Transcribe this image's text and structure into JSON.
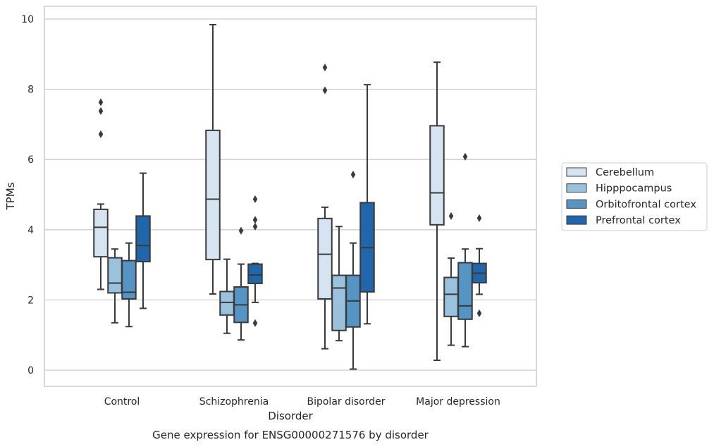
{
  "chart_data": {
    "type": "box",
    "title": "",
    "caption": "Gene expression for ENSG00000271576 by disorder",
    "xlabel": "Disorder",
    "ylabel": "TPMs",
    "ylim": [
      -0.4,
      10.35
    ],
    "yticks": [
      0,
      2,
      4,
      6,
      8,
      10
    ],
    "grid": "horizontal",
    "legend_position": "right",
    "categories": [
      "Control",
      "Schizophrenia",
      "Bipolar disorder",
      "Major depression"
    ],
    "series": [
      {
        "name": "Cerebellum",
        "color": "#d6e4f2",
        "boxes": [
          {
            "whisker_low": 2.3,
            "q1": 3.23,
            "median": 4.07,
            "q3": 4.58,
            "whisker_high": 4.73,
            "outliers": [
              6.72,
              7.38,
              7.63
            ]
          },
          {
            "whisker_low": 2.17,
            "q1": 3.15,
            "median": 4.87,
            "q3": 6.83,
            "whisker_high": 9.84,
            "outliers": []
          },
          {
            "whisker_low": 0.61,
            "q1": 2.03,
            "median": 3.3,
            "q3": 4.32,
            "whisker_high": 4.64,
            "outliers": [
              7.97,
              8.62
            ]
          },
          {
            "whisker_low": 0.28,
            "q1": 4.14,
            "median": 5.05,
            "q3": 6.96,
            "whisker_high": 8.77,
            "outliers": []
          }
        ]
      },
      {
        "name": "Hipppocampus",
        "color": "#9bc2dc",
        "boxes": [
          {
            "whisker_low": 1.35,
            "q1": 2.2,
            "median": 2.48,
            "q3": 3.2,
            "whisker_high": 3.45,
            "outliers": []
          },
          {
            "whisker_low": 1.05,
            "q1": 1.57,
            "median": 1.93,
            "q3": 2.24,
            "whisker_high": 3.16,
            "outliers": []
          },
          {
            "whisker_low": 0.84,
            "q1": 1.13,
            "median": 2.34,
            "q3": 2.7,
            "whisker_high": 4.09,
            "outliers": []
          },
          {
            "whisker_low": 0.71,
            "q1": 1.53,
            "median": 2.16,
            "q3": 2.64,
            "whisker_high": 3.19,
            "outliers": [
              4.39
            ]
          }
        ]
      },
      {
        "name": "Orbitofrontal cortex",
        "color": "#5694c4",
        "boxes": [
          {
            "whisker_low": 1.24,
            "q1": 2.03,
            "median": 2.22,
            "q3": 3.12,
            "whisker_high": 3.62,
            "outliers": []
          },
          {
            "whisker_low": 0.86,
            "q1": 1.36,
            "median": 1.86,
            "q3": 2.37,
            "whisker_high": 3.02,
            "outliers": [
              3.97
            ]
          },
          {
            "whisker_low": 0.03,
            "q1": 1.23,
            "median": 1.97,
            "q3": 2.7,
            "whisker_high": 3.62,
            "outliers": [
              5.57
            ]
          },
          {
            "whisker_low": 0.67,
            "q1": 1.45,
            "median": 1.83,
            "q3": 3.06,
            "whisker_high": 3.45,
            "outliers": [
              6.08
            ]
          }
        ]
      },
      {
        "name": "Prefrontal cortex",
        "color": "#2166ab",
        "boxes": [
          {
            "whisker_low": 1.76,
            "q1": 3.09,
            "median": 3.55,
            "q3": 4.39,
            "whisker_high": 5.61,
            "outliers": []
          },
          {
            "whisker_low": 1.93,
            "q1": 2.47,
            "median": 2.71,
            "q3": 3.02,
            "whisker_high": 3.04,
            "outliers": [
              1.34,
              4.09,
              4.28,
              4.87
            ]
          },
          {
            "whisker_low": 1.32,
            "q1": 2.23,
            "median": 3.49,
            "q3": 4.77,
            "whisker_high": 8.13,
            "outliers": []
          },
          {
            "whisker_low": 2.16,
            "q1": 2.49,
            "median": 2.76,
            "q3": 3.04,
            "whisker_high": 3.46,
            "outliers": [
              1.62,
              4.33
            ]
          }
        ]
      }
    ]
  }
}
